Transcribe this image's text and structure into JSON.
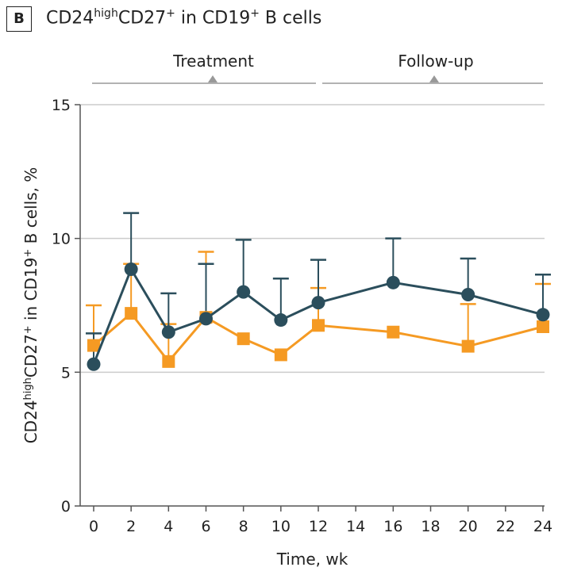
{
  "panel_label": "B",
  "title": {
    "pre": "CD24",
    "sup1": "high",
    "mid": "CD27",
    "sup2": "+",
    "post": " in CD19",
    "sup3": "+",
    "end": " B cells"
  },
  "phases": [
    {
      "label": "Treatment",
      "start": 0,
      "end": 12
    },
    {
      "label": "Follow-up",
      "start": 12,
      "end": 24
    }
  ],
  "colors": {
    "series_a": "#2b4e5c",
    "series_b": "#f59a23",
    "axis": "#555555",
    "grid": "#cccccc",
    "bracket": "#999999"
  },
  "chart_data": {
    "type": "line",
    "xlabel": "Time, wk",
    "ylabel": "CD24highCD27+ in CD19+ B cells, %",
    "xlim": [
      0,
      24
    ],
    "ylim": [
      0,
      15
    ],
    "xticks": [
      0,
      2,
      4,
      6,
      8,
      10,
      12,
      14,
      16,
      18,
      20,
      22,
      24
    ],
    "yticks": [
      0,
      5,
      10,
      15
    ],
    "grid": true,
    "series": [
      {
        "marker": "circle",
        "color": "#2b4e5c",
        "x": [
          0,
          2,
          4,
          6,
          8,
          10,
          12,
          16,
          20,
          24
        ],
        "y": [
          5.3,
          8.85,
          6.5,
          7.0,
          8.0,
          6.95,
          7.6,
          8.35,
          7.9,
          7.15
        ],
        "error_upper": [
          6.45,
          10.95,
          7.95,
          9.05,
          9.95,
          8.5,
          9.2,
          10.0,
          9.25,
          8.65
        ]
      },
      {
        "marker": "square",
        "color": "#f59a23",
        "x": [
          0,
          2,
          4,
          6,
          8,
          10,
          12,
          16,
          20,
          24
        ],
        "y": [
          6.0,
          7.2,
          5.4,
          7.05,
          6.25,
          5.65,
          6.75,
          6.5,
          5.97,
          6.7
        ],
        "error_upper": [
          7.5,
          9.05,
          6.8,
          9.5,
          6.25,
          5.65,
          8.15,
          6.5,
          7.55,
          8.3
        ]
      }
    ]
  }
}
